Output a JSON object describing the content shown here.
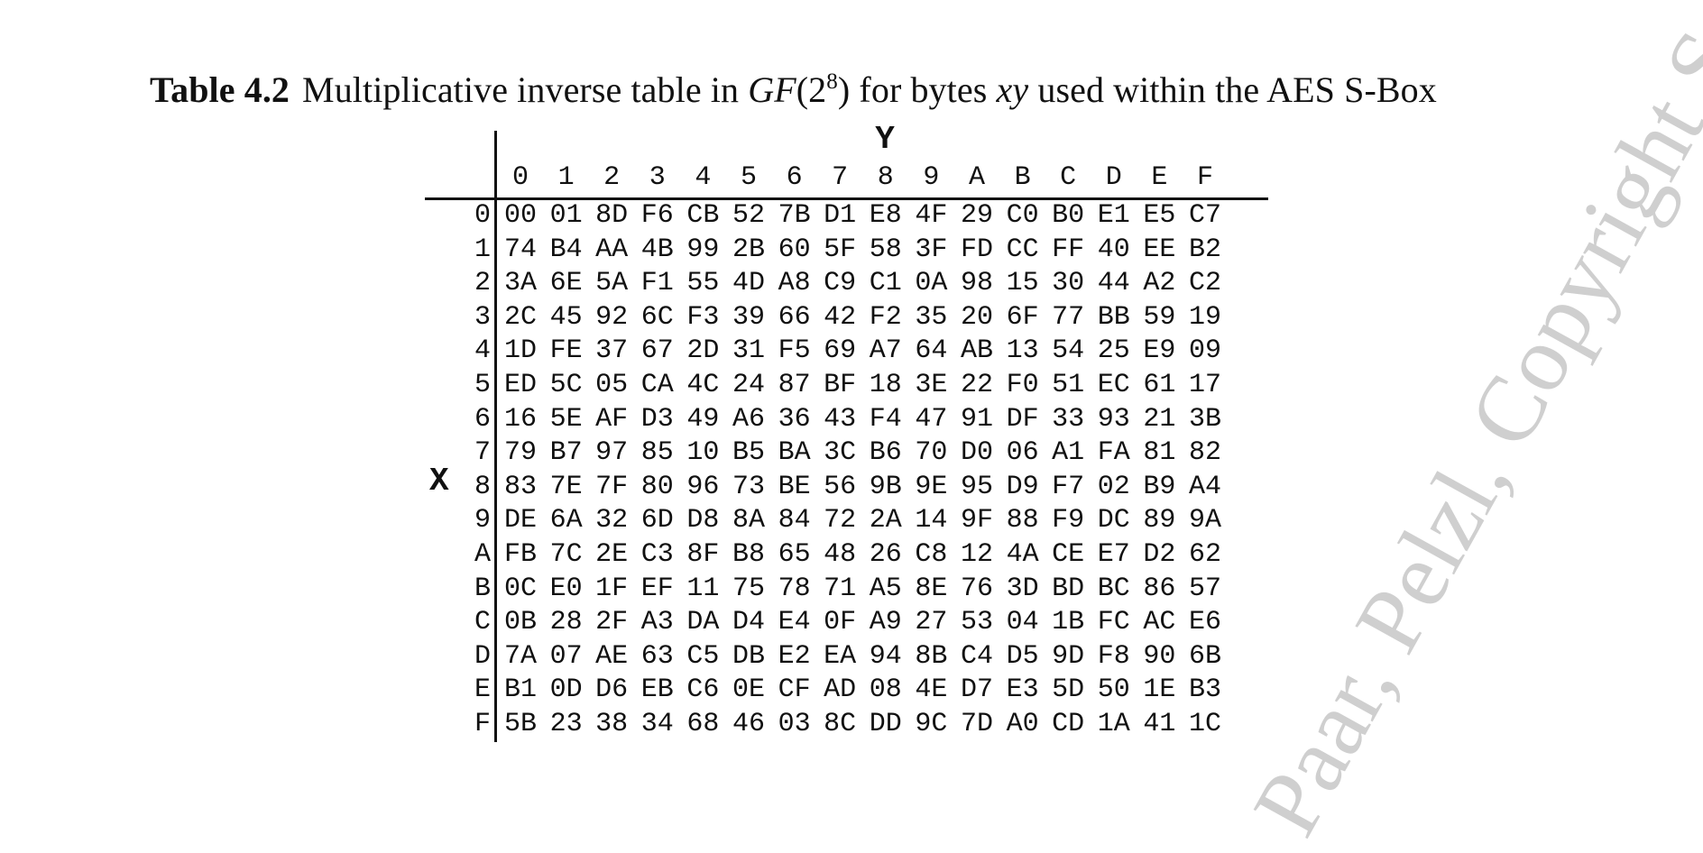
{
  "caption": {
    "label": "Table 4.2",
    "text_before": "Multiplicative inverse table in",
    "field": "GF",
    "open_paren": "(2",
    "exponent": "8",
    "close_paren": ")",
    "text_for": "for bytes",
    "xy": "xy",
    "text_after": "used within the AES S-Box"
  },
  "axis": {
    "y_label": "Y",
    "x_label": "X"
  },
  "columns": [
    "0",
    "1",
    "2",
    "3",
    "4",
    "5",
    "6",
    "7",
    "8",
    "9",
    "A",
    "B",
    "C",
    "D",
    "E",
    "F"
  ],
  "rows": [
    {
      "label": "0",
      "cells": [
        "00",
        "01",
        "8D",
        "F6",
        "CB",
        "52",
        "7B",
        "D1",
        "E8",
        "4F",
        "29",
        "C0",
        "B0",
        "E1",
        "E5",
        "C7"
      ]
    },
    {
      "label": "1",
      "cells": [
        "74",
        "B4",
        "AA",
        "4B",
        "99",
        "2B",
        "60",
        "5F",
        "58",
        "3F",
        "FD",
        "CC",
        "FF",
        "40",
        "EE",
        "B2"
      ]
    },
    {
      "label": "2",
      "cells": [
        "3A",
        "6E",
        "5A",
        "F1",
        "55",
        "4D",
        "A8",
        "C9",
        "C1",
        "0A",
        "98",
        "15",
        "30",
        "44",
        "A2",
        "C2"
      ]
    },
    {
      "label": "3",
      "cells": [
        "2C",
        "45",
        "92",
        "6C",
        "F3",
        "39",
        "66",
        "42",
        "F2",
        "35",
        "20",
        "6F",
        "77",
        "BB",
        "59",
        "19"
      ]
    },
    {
      "label": "4",
      "cells": [
        "1D",
        "FE",
        "37",
        "67",
        "2D",
        "31",
        "F5",
        "69",
        "A7",
        "64",
        "AB",
        "13",
        "54",
        "25",
        "E9",
        "09"
      ]
    },
    {
      "label": "5",
      "cells": [
        "ED",
        "5C",
        "05",
        "CA",
        "4C",
        "24",
        "87",
        "BF",
        "18",
        "3E",
        "22",
        "F0",
        "51",
        "EC",
        "61",
        "17"
      ]
    },
    {
      "label": "6",
      "cells": [
        "16",
        "5E",
        "AF",
        "D3",
        "49",
        "A6",
        "36",
        "43",
        "F4",
        "47",
        "91",
        "DF",
        "33",
        "93",
        "21",
        "3B"
      ]
    },
    {
      "label": "7",
      "cells": [
        "79",
        "B7",
        "97",
        "85",
        "10",
        "B5",
        "BA",
        "3C",
        "B6",
        "70",
        "D0",
        "06",
        "A1",
        "FA",
        "81",
        "82"
      ]
    },
    {
      "label": "8",
      "cells": [
        "83",
        "7E",
        "7F",
        "80",
        "96",
        "73",
        "BE",
        "56",
        "9B",
        "9E",
        "95",
        "D9",
        "F7",
        "02",
        "B9",
        "A4"
      ]
    },
    {
      "label": "9",
      "cells": [
        "DE",
        "6A",
        "32",
        "6D",
        "D8",
        "8A",
        "84",
        "72",
        "2A",
        "14",
        "9F",
        "88",
        "F9",
        "DC",
        "89",
        "9A"
      ]
    },
    {
      "label": "A",
      "cells": [
        "FB",
        "7C",
        "2E",
        "C3",
        "8F",
        "B8",
        "65",
        "48",
        "26",
        "C8",
        "12",
        "4A",
        "CE",
        "E7",
        "D2",
        "62"
      ]
    },
    {
      "label": "B",
      "cells": [
        "0C",
        "E0",
        "1F",
        "EF",
        "11",
        "75",
        "78",
        "71",
        "A5",
        "8E",
        "76",
        "3D",
        "BD",
        "BC",
        "86",
        "57"
      ]
    },
    {
      "label": "C",
      "cells": [
        "0B",
        "28",
        "2F",
        "A3",
        "DA",
        "D4",
        "E4",
        "0F",
        "A9",
        "27",
        "53",
        "04",
        "1B",
        "FC",
        "AC",
        "E6"
      ]
    },
    {
      "label": "D",
      "cells": [
        "7A",
        "07",
        "AE",
        "63",
        "C5",
        "DB",
        "E2",
        "EA",
        "94",
        "8B",
        "C4",
        "D5",
        "9D",
        "F8",
        "90",
        "6B"
      ]
    },
    {
      "label": "E",
      "cells": [
        "B1",
        "0D",
        "D6",
        "EB",
        "C6",
        "0E",
        "CF",
        "AD",
        "08",
        "4E",
        "D7",
        "E3",
        "5D",
        "50",
        "1E",
        "B3"
      ]
    },
    {
      "label": "F",
      "cells": [
        "5B",
        "23",
        "38",
        "34",
        "68",
        "46",
        "03",
        "8C",
        "DD",
        "9C",
        "7D",
        "A0",
        "CD",
        "1A",
        "41",
        "1C"
      ]
    }
  ],
  "watermark": "Paar, Pelzl, Copyright Springer"
}
